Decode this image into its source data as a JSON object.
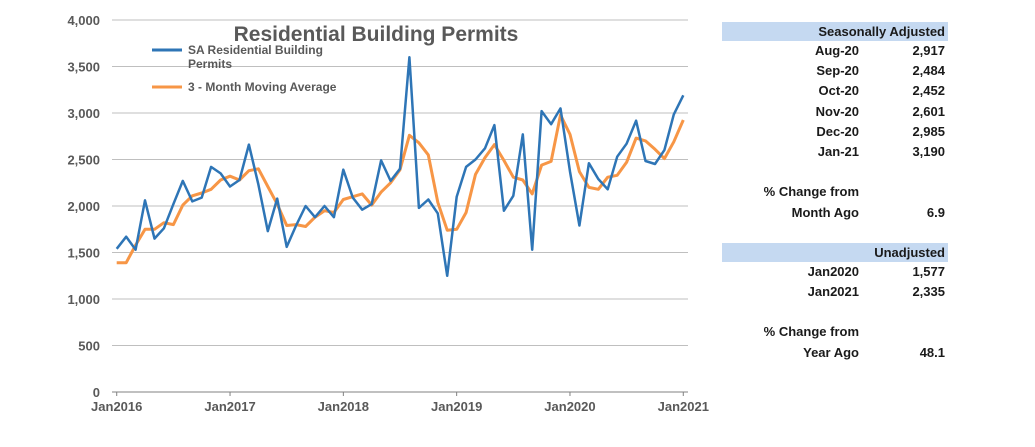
{
  "chart_data": {
    "type": "line",
    "title": "Residential Building Permits",
    "xlabel": "",
    "ylabel": "",
    "ylim": [
      0,
      4000
    ],
    "yticks": [
      0,
      500,
      1000,
      1500,
      2000,
      2500,
      3000,
      3500,
      4000
    ],
    "ytick_labels": [
      "0",
      "500",
      "1,000",
      "1,500",
      "2,000",
      "2,500",
      "3,000",
      "3,500",
      "4,000"
    ],
    "xtick_labels": [
      "Jan2016",
      "Jan2017",
      "Jan2018",
      "Jan2019",
      "Jan2020",
      "Jan2021"
    ],
    "xtick_index": [
      0,
      12,
      24,
      36,
      48,
      60
    ],
    "legend_position": "top-left",
    "series": [
      {
        "name": "SA Residential Building Permits",
        "legend_line1": "SA Residential Building",
        "legend_line2": "Permits",
        "color": "#2e75b6",
        "values": [
          1540,
          1670,
          1530,
          2060,
          1650,
          1760,
          2020,
          2270,
          2050,
          2090,
          2420,
          2350,
          2210,
          2280,
          2660,
          2230,
          1730,
          2080,
          1560,
          1790,
          2000,
          1880,
          2000,
          1880,
          2390,
          2090,
          1960,
          2020,
          2490,
          2270,
          2400,
          3600,
          1980,
          2070,
          1920,
          1250,
          2100,
          2420,
          2500,
          2620,
          2870,
          1950,
          2110,
          2770,
          1530,
          3020,
          2880,
          3050,
          2370,
          1790,
          2460,
          2290,
          2180,
          2530,
          2670,
          2917,
          2484,
          2452,
          2601,
          2985,
          3190
        ]
      },
      {
        "name": "3 - Month Moving Average",
        "color": "#f79646",
        "values": [
          1390,
          1390,
          1580,
          1750,
          1750,
          1820,
          1800,
          2010,
          2110,
          2140,
          2180,
          2280,
          2320,
          2280,
          2380,
          2400,
          2210,
          2020,
          1790,
          1800,
          1780,
          1880,
          1950,
          1930,
          2070,
          2100,
          2130,
          2010,
          2150,
          2250,
          2390,
          2760,
          2680,
          2550,
          2040,
          1740,
          1750,
          1930,
          2340,
          2520,
          2660,
          2490,
          2310,
          2280,
          2130,
          2440,
          2480,
          2980,
          2770,
          2370,
          2200,
          2180,
          2310,
          2330,
          2470,
          2730,
          2700,
          2610,
          2510,
          2690,
          2925
        ]
      }
    ]
  },
  "side_table": {
    "sa_header": "Seasonally Adjusted",
    "sa_rows": [
      {
        "label": "Aug-20",
        "value": "2,917"
      },
      {
        "label": "Sep-20",
        "value": "2,484"
      },
      {
        "label": "Oct-20",
        "value": "2,452"
      },
      {
        "label": "Nov-20",
        "value": "2,601"
      },
      {
        "label": "Dec-20",
        "value": "2,985"
      },
      {
        "label": "Jan-21",
        "value": "3,190"
      }
    ],
    "pct_change_from_1": "% Change from",
    "month_ago_label": "Month Ago",
    "month_ago_value": "6.9",
    "un_header": "Unadjusted",
    "un_rows": [
      {
        "label": "Jan2020",
        "value": "1,577"
      },
      {
        "label": "Jan2021",
        "value": "2,335"
      }
    ],
    "pct_change_from_2": "% Change from",
    "year_ago_label": "Year Ago",
    "year_ago_value": "48.1"
  }
}
